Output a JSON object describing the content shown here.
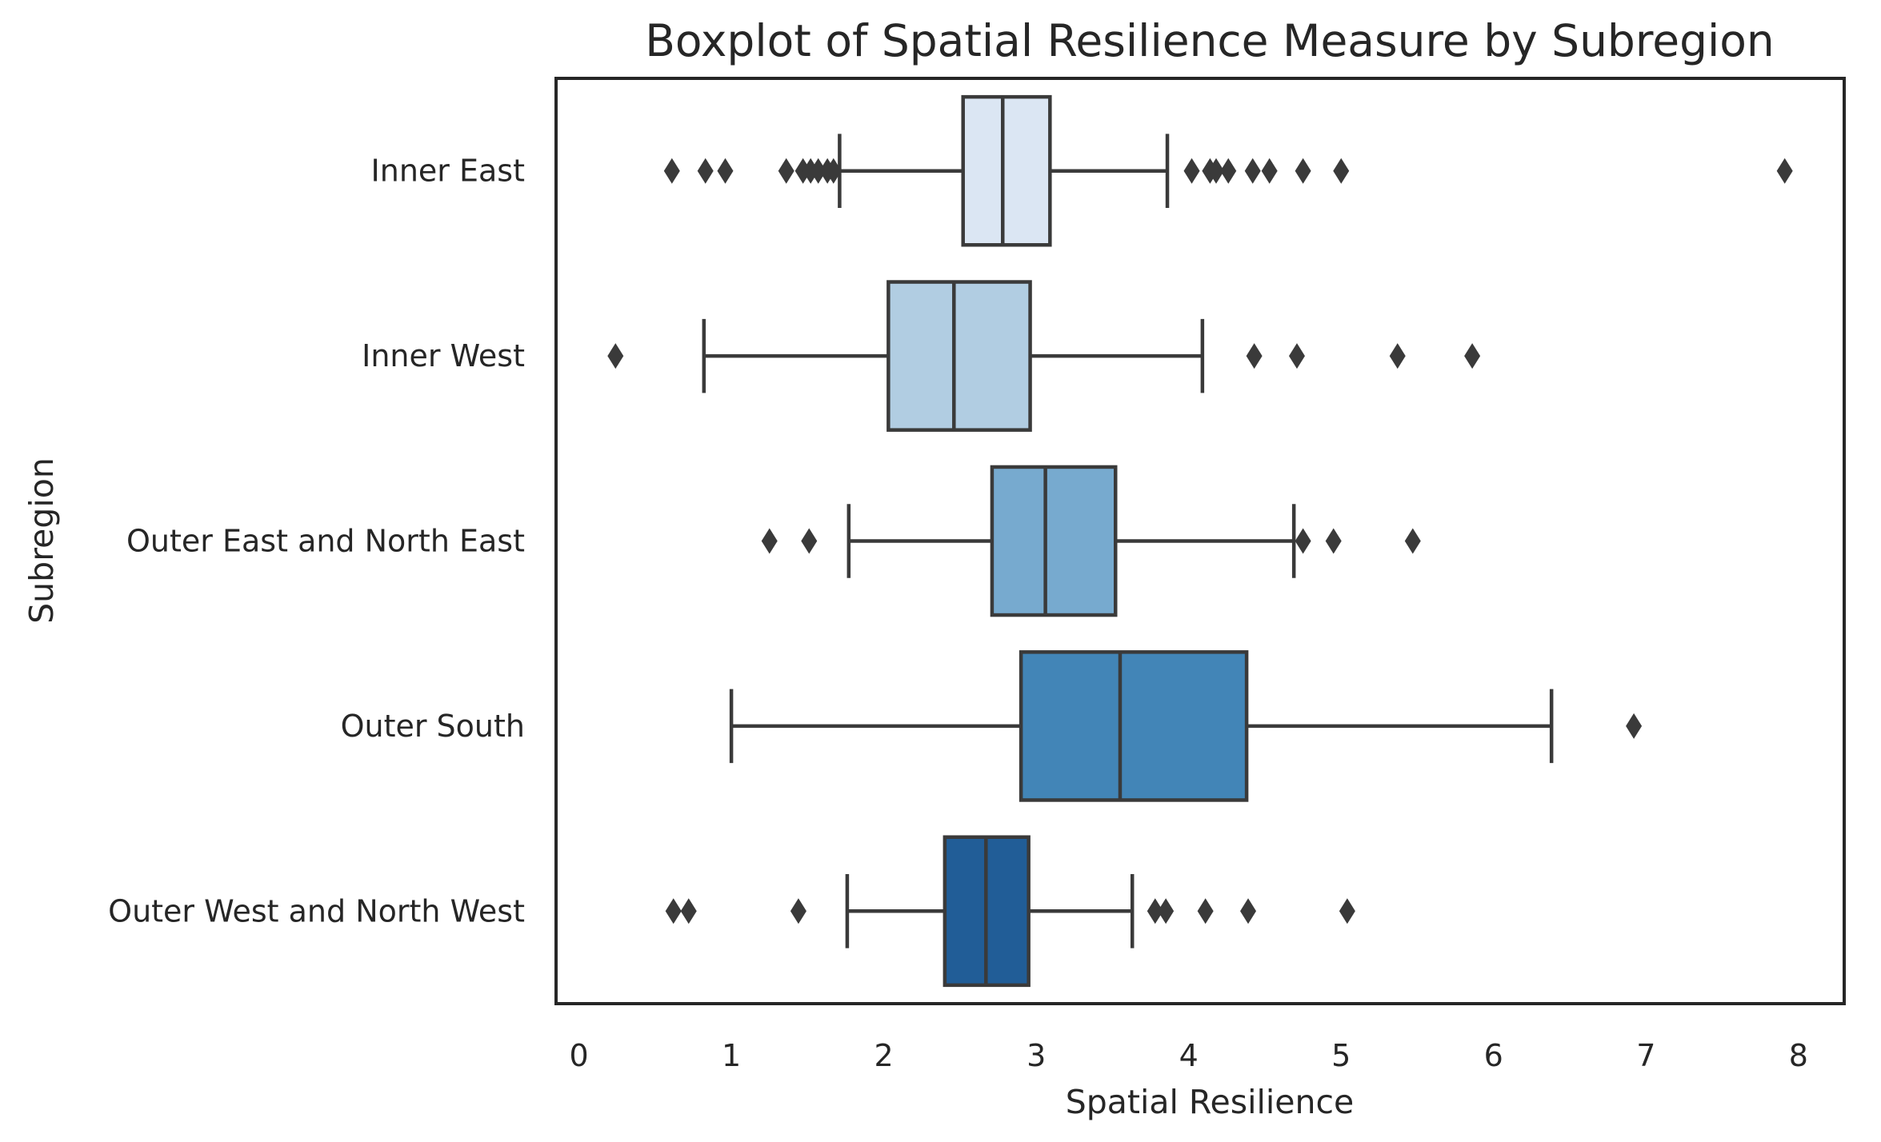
{
  "chart_data": {
    "type": "boxplot",
    "orientation": "horizontal",
    "title": "Boxplot of Spatial Resilience Measure by Subregion",
    "xlabel": "Spatial Resilience",
    "ylabel": "Subregion",
    "xlim": [
      -0.15,
      8.3
    ],
    "xticks": [
      0,
      1,
      2,
      3,
      4,
      5,
      6,
      7,
      8
    ],
    "grid": false,
    "categories": [
      "Inner East",
      "Inner West",
      "Outer East and North East",
      "Outer South",
      "Outer West and North West"
    ],
    "series": [
      {
        "category": "Inner East",
        "whisker_low": 1.71,
        "q1": 2.52,
        "median": 2.78,
        "q3": 3.09,
        "whisker_high": 3.86,
        "outliers": [
          0.61,
          0.83,
          0.96,
          1.36,
          1.47,
          1.52,
          1.57,
          1.63,
          1.67,
          4.02,
          4.14,
          4.18,
          4.26,
          4.42,
          4.53,
          4.75,
          5.0,
          7.91
        ]
      },
      {
        "category": "Inner West",
        "whisker_low": 0.82,
        "q1": 2.03,
        "median": 2.46,
        "q3": 2.96,
        "whisker_high": 4.09,
        "outliers": [
          0.24,
          4.43,
          4.71,
          5.37,
          5.86
        ]
      },
      {
        "category": "Outer East and North East",
        "whisker_low": 1.77,
        "q1": 2.71,
        "median": 3.06,
        "q3": 3.52,
        "whisker_high": 4.69,
        "outliers": [
          1.25,
          1.51,
          4.75,
          4.95,
          5.47
        ]
      },
      {
        "category": "Outer South",
        "whisker_low": 1.0,
        "q1": 2.9,
        "median": 3.55,
        "q3": 4.38,
        "whisker_high": 6.38,
        "outliers": [
          6.92
        ]
      },
      {
        "category": "Outer West and North West",
        "whisker_low": 1.76,
        "q1": 2.4,
        "median": 2.67,
        "q3": 2.95,
        "whisker_high": 3.63,
        "outliers": [
          0.62,
          0.72,
          1.44,
          3.78,
          3.85,
          4.11,
          4.39,
          5.04
        ]
      }
    ],
    "colors": {
      "boxes": [
        "#dbe6f3",
        "#b1cde2",
        "#77aacf",
        "#4285b7",
        "#215d97"
      ],
      "lines": "#3a3a3a",
      "frame": "#262626",
      "text": "#262626"
    }
  }
}
